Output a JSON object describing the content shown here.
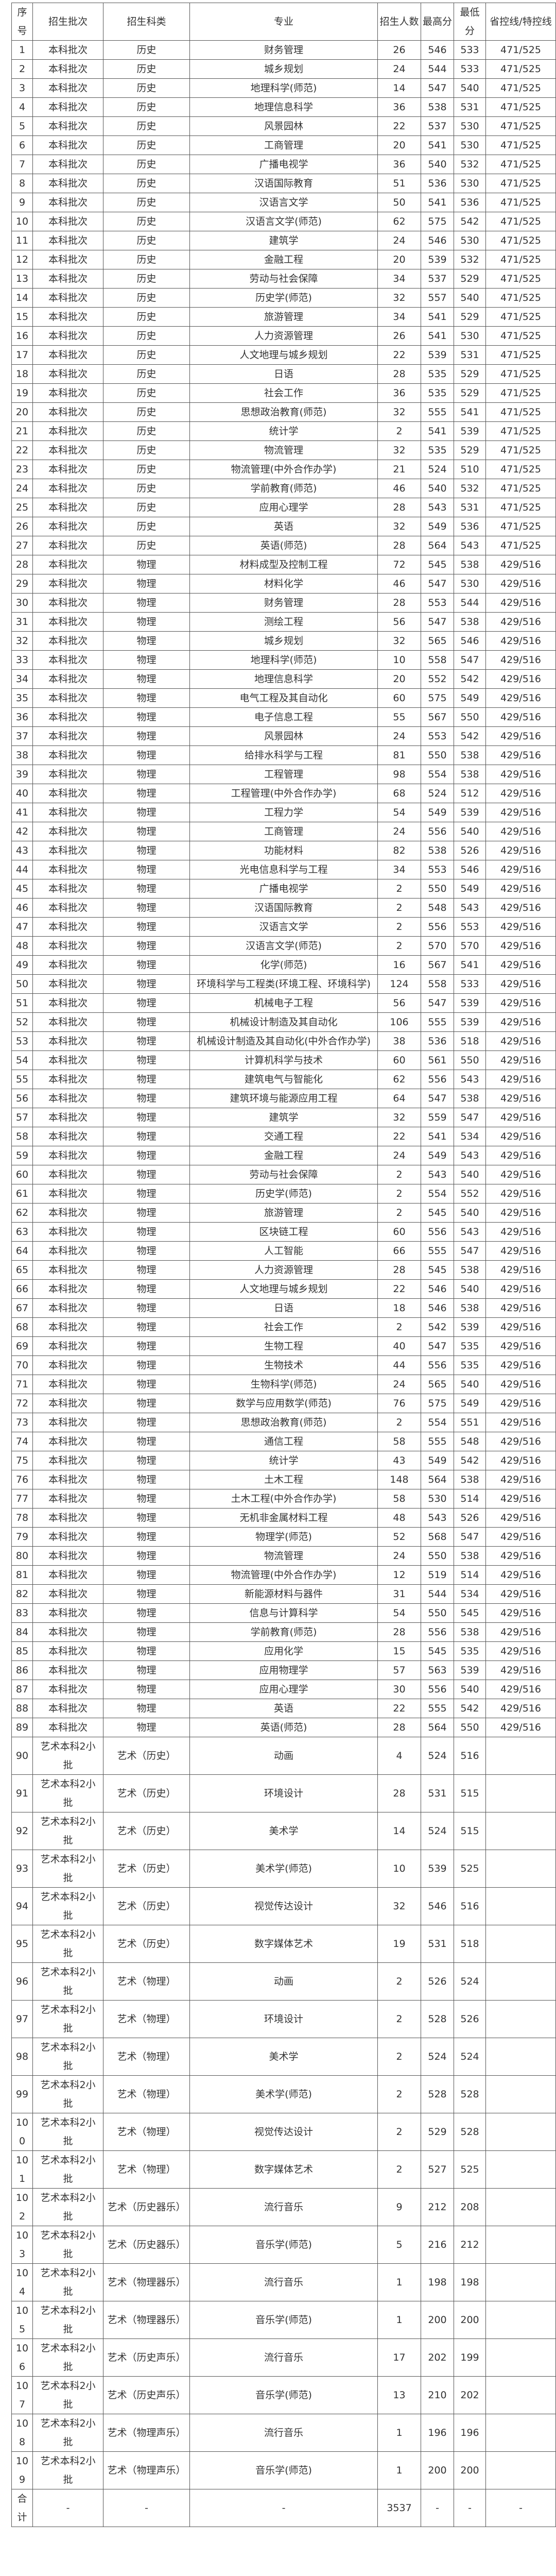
{
  "table": {
    "headers": [
      "序号",
      "招生批次",
      "招生科类",
      "专业",
      "招生人数",
      "最高分",
      "最低分",
      "省控线/特控线"
    ],
    "rows": [
      [
        "1",
        "本科批次",
        "历史",
        "财务管理",
        "26",
        "546",
        "533",
        "471/525"
      ],
      [
        "2",
        "本科批次",
        "历史",
        "城乡规划",
        "24",
        "544",
        "533",
        "471/525"
      ],
      [
        "3",
        "本科批次",
        "历史",
        "地理科学(师范)",
        "14",
        "547",
        "540",
        "471/525"
      ],
      [
        "4",
        "本科批次",
        "历史",
        "地理信息科学",
        "36",
        "538",
        "531",
        "471/525"
      ],
      [
        "5",
        "本科批次",
        "历史",
        "风景园林",
        "22",
        "537",
        "530",
        "471/525"
      ],
      [
        "6",
        "本科批次",
        "历史",
        "工商管理",
        "20",
        "541",
        "530",
        "471/525"
      ],
      [
        "7",
        "本科批次",
        "历史",
        "广播电视学",
        "36",
        "540",
        "532",
        "471/525"
      ],
      [
        "8",
        "本科批次",
        "历史",
        "汉语国际教育",
        "51",
        "536",
        "530",
        "471/525"
      ],
      [
        "9",
        "本科批次",
        "历史",
        "汉语言文学",
        "50",
        "541",
        "536",
        "471/525"
      ],
      [
        "10",
        "本科批次",
        "历史",
        "汉语言文学(师范)",
        "62",
        "575",
        "542",
        "471/525"
      ],
      [
        "11",
        "本科批次",
        "历史",
        "建筑学",
        "24",
        "546",
        "530",
        "471/525"
      ],
      [
        "12",
        "本科批次",
        "历史",
        "金融工程",
        "20",
        "539",
        "532",
        "471/525"
      ],
      [
        "13",
        "本科批次",
        "历史",
        "劳动与社会保障",
        "34",
        "537",
        "529",
        "471/525"
      ],
      [
        "14",
        "本科批次",
        "历史",
        "历史学(师范)",
        "32",
        "557",
        "540",
        "471/525"
      ],
      [
        "15",
        "本科批次",
        "历史",
        "旅游管理",
        "34",
        "541",
        "529",
        "471/525"
      ],
      [
        "16",
        "本科批次",
        "历史",
        "人力资源管理",
        "26",
        "541",
        "530",
        "471/525"
      ],
      [
        "17",
        "本科批次",
        "历史",
        "人文地理与城乡规划",
        "22",
        "539",
        "531",
        "471/525"
      ],
      [
        "18",
        "本科批次",
        "历史",
        "日语",
        "28",
        "535",
        "529",
        "471/525"
      ],
      [
        "19",
        "本科批次",
        "历史",
        "社会工作",
        "36",
        "535",
        "529",
        "471/525"
      ],
      [
        "20",
        "本科批次",
        "历史",
        "思想政治教育(师范)",
        "32",
        "555",
        "541",
        "471/525"
      ],
      [
        "21",
        "本科批次",
        "历史",
        "统计学",
        "2",
        "541",
        "539",
        "471/525"
      ],
      [
        "22",
        "本科批次",
        "历史",
        "物流管理",
        "32",
        "535",
        "529",
        "471/525"
      ],
      [
        "23",
        "本科批次",
        "历史",
        "物流管理(中外合作办学)",
        "21",
        "524",
        "510",
        "471/525"
      ],
      [
        "24",
        "本科批次",
        "历史",
        "学前教育(师范)",
        "46",
        "540",
        "532",
        "471/525"
      ],
      [
        "25",
        "本科批次",
        "历史",
        "应用心理学",
        "28",
        "543",
        "531",
        "471/525"
      ],
      [
        "26",
        "本科批次",
        "历史",
        "英语",
        "32",
        "549",
        "536",
        "471/525"
      ],
      [
        "27",
        "本科批次",
        "历史",
        "英语(师范)",
        "28",
        "564",
        "543",
        "471/525"
      ],
      [
        "28",
        "本科批次",
        "物理",
        "材料成型及控制工程",
        "72",
        "545",
        "538",
        "429/516"
      ],
      [
        "29",
        "本科批次",
        "物理",
        "材料化学",
        "46",
        "547",
        "530",
        "429/516"
      ],
      [
        "30",
        "本科批次",
        "物理",
        "财务管理",
        "28",
        "553",
        "544",
        "429/516"
      ],
      [
        "31",
        "本科批次",
        "物理",
        "测绘工程",
        "56",
        "547",
        "538",
        "429/516"
      ],
      [
        "32",
        "本科批次",
        "物理",
        "城乡规划",
        "32",
        "565",
        "546",
        "429/516"
      ],
      [
        "33",
        "本科批次",
        "物理",
        "地理科学(师范)",
        "10",
        "558",
        "547",
        "429/516"
      ],
      [
        "34",
        "本科批次",
        "物理",
        "地理信息科学",
        "20",
        "552",
        "542",
        "429/516"
      ],
      [
        "35",
        "本科批次",
        "物理",
        "电气工程及其自动化",
        "60",
        "575",
        "549",
        "429/516"
      ],
      [
        "36",
        "本科批次",
        "物理",
        "电子信息工程",
        "55",
        "567",
        "550",
        "429/516"
      ],
      [
        "37",
        "本科批次",
        "物理",
        "风景园林",
        "24",
        "553",
        "542",
        "429/516"
      ],
      [
        "38",
        "本科批次",
        "物理",
        "给排水科学与工程",
        "81",
        "550",
        "538",
        "429/516"
      ],
      [
        "39",
        "本科批次",
        "物理",
        "工程管理",
        "98",
        "554",
        "538",
        "429/516"
      ],
      [
        "40",
        "本科批次",
        "物理",
        "工程管理(中外合作办学)",
        "68",
        "524",
        "512",
        "429/516"
      ],
      [
        "41",
        "本科批次",
        "物理",
        "工程力学",
        "54",
        "549",
        "539",
        "429/516"
      ],
      [
        "42",
        "本科批次",
        "物理",
        "工商管理",
        "24",
        "556",
        "540",
        "429/516"
      ],
      [
        "43",
        "本科批次",
        "物理",
        "功能材料",
        "82",
        "538",
        "526",
        "429/516"
      ],
      [
        "44",
        "本科批次",
        "物理",
        "光电信息科学与工程",
        "34",
        "553",
        "546",
        "429/516"
      ],
      [
        "45",
        "本科批次",
        "物理",
        "广播电视学",
        "2",
        "550",
        "549",
        "429/516"
      ],
      [
        "46",
        "本科批次",
        "物理",
        "汉语国际教育",
        "2",
        "548",
        "543",
        "429/516"
      ],
      [
        "47",
        "本科批次",
        "物理",
        "汉语言文学",
        "2",
        "556",
        "553",
        "429/516"
      ],
      [
        "48",
        "本科批次",
        "物理",
        "汉语言文学(师范)",
        "2",
        "570",
        "570",
        "429/516"
      ],
      [
        "49",
        "本科批次",
        "物理",
        "化学(师范)",
        "16",
        "567",
        "541",
        "429/516"
      ],
      [
        "50",
        "本科批次",
        "物理",
        "环境科学与工程类(环境工程、环境科学)",
        "124",
        "558",
        "533",
        "429/516"
      ],
      [
        "51",
        "本科批次",
        "物理",
        "机械电子工程",
        "56",
        "547",
        "539",
        "429/516"
      ],
      [
        "52",
        "本科批次",
        "物理",
        "机械设计制造及其自动化",
        "106",
        "555",
        "539",
        "429/516"
      ],
      [
        "53",
        "本科批次",
        "物理",
        "机械设计制造及其自动化(中外合作办学)",
        "38",
        "536",
        "518",
        "429/516"
      ],
      [
        "54",
        "本科批次",
        "物理",
        "计算机科学与技术",
        "60",
        "561",
        "550",
        "429/516"
      ],
      [
        "55",
        "本科批次",
        "物理",
        "建筑电气与智能化",
        "62",
        "556",
        "543",
        "429/516"
      ],
      [
        "56",
        "本科批次",
        "物理",
        "建筑环境与能源应用工程",
        "64",
        "547",
        "538",
        "429/516"
      ],
      [
        "57",
        "本科批次",
        "物理",
        "建筑学",
        "32",
        "559",
        "547",
        "429/516"
      ],
      [
        "58",
        "本科批次",
        "物理",
        "交通工程",
        "22",
        "541",
        "534",
        "429/516"
      ],
      [
        "59",
        "本科批次",
        "物理",
        "金融工程",
        "24",
        "549",
        "543",
        "429/516"
      ],
      [
        "60",
        "本科批次",
        "物理",
        "劳动与社会保障",
        "2",
        "543",
        "540",
        "429/516"
      ],
      [
        "61",
        "本科批次",
        "物理",
        "历史学(师范)",
        "2",
        "554",
        "552",
        "429/516"
      ],
      [
        "62",
        "本科批次",
        "物理",
        "旅游管理",
        "2",
        "545",
        "540",
        "429/516"
      ],
      [
        "63",
        "本科批次",
        "物理",
        "区块链工程",
        "60",
        "556",
        "543",
        "429/516"
      ],
      [
        "64",
        "本科批次",
        "物理",
        "人工智能",
        "66",
        "555",
        "547",
        "429/516"
      ],
      [
        "65",
        "本科批次",
        "物理",
        "人力资源管理",
        "28",
        "545",
        "538",
        "429/516"
      ],
      [
        "66",
        "本科批次",
        "物理",
        "人文地理与城乡规划",
        "22",
        "546",
        "540",
        "429/516"
      ],
      [
        "67",
        "本科批次",
        "物理",
        "日语",
        "18",
        "546",
        "538",
        "429/516"
      ],
      [
        "68",
        "本科批次",
        "物理",
        "社会工作",
        "2",
        "542",
        "539",
        "429/516"
      ],
      [
        "69",
        "本科批次",
        "物理",
        "生物工程",
        "40",
        "547",
        "535",
        "429/516"
      ],
      [
        "70",
        "本科批次",
        "物理",
        "生物技术",
        "44",
        "556",
        "535",
        "429/516"
      ],
      [
        "71",
        "本科批次",
        "物理",
        "生物科学(师范)",
        "24",
        "565",
        "540",
        "429/516"
      ],
      [
        "72",
        "本科批次",
        "物理",
        "数学与应用数学(师范)",
        "76",
        "575",
        "549",
        "429/516"
      ],
      [
        "73",
        "本科批次",
        "物理",
        "思想政治教育(师范)",
        "2",
        "554",
        "551",
        "429/516"
      ],
      [
        "74",
        "本科批次",
        "物理",
        "通信工程",
        "58",
        "555",
        "548",
        "429/516"
      ],
      [
        "75",
        "本科批次",
        "物理",
        "统计学",
        "43",
        "549",
        "542",
        "429/516"
      ],
      [
        "76",
        "本科批次",
        "物理",
        "土木工程",
        "148",
        "564",
        "538",
        "429/516"
      ],
      [
        "77",
        "本科批次",
        "物理",
        "土木工程(中外合作办学)",
        "58",
        "530",
        "514",
        "429/516"
      ],
      [
        "78",
        "本科批次",
        "物理",
        "无机非金属材料工程",
        "48",
        "543",
        "526",
        "429/516"
      ],
      [
        "79",
        "本科批次",
        "物理",
        "物理学(师范)",
        "52",
        "568",
        "547",
        "429/516"
      ],
      [
        "80",
        "本科批次",
        "物理",
        "物流管理",
        "24",
        "550",
        "538",
        "429/516"
      ],
      [
        "81",
        "本科批次",
        "物理",
        "物流管理(中外合作办学)",
        "12",
        "519",
        "514",
        "429/516"
      ],
      [
        "82",
        "本科批次",
        "物理",
        "新能源材料与器件",
        "31",
        "544",
        "534",
        "429/516"
      ],
      [
        "83",
        "本科批次",
        "物理",
        "信息与计算科学",
        "54",
        "550",
        "545",
        "429/516"
      ],
      [
        "84",
        "本科批次",
        "物理",
        "学前教育(师范)",
        "28",
        "556",
        "538",
        "429/516"
      ],
      [
        "85",
        "本科批次",
        "物理",
        "应用化学",
        "15",
        "545",
        "535",
        "429/516"
      ],
      [
        "86",
        "本科批次",
        "物理",
        "应用物理学",
        "57",
        "563",
        "539",
        "429/516"
      ],
      [
        "87",
        "本科批次",
        "物理",
        "应用心理学",
        "30",
        "556",
        "540",
        "429/516"
      ],
      [
        "88",
        "本科批次",
        "物理",
        "英语",
        "22",
        "555",
        "542",
        "429/516"
      ],
      [
        "89",
        "本科批次",
        "物理",
        "英语(师范)",
        "28",
        "564",
        "550",
        "429/516"
      ],
      [
        "90",
        "艺术本科2小批",
        "艺术（历史）",
        "动画",
        "4",
        "524",
        "516",
        ""
      ],
      [
        "91",
        "艺术本科2小批",
        "艺术（历史）",
        "环境设计",
        "28",
        "531",
        "515",
        ""
      ],
      [
        "92",
        "艺术本科2小批",
        "艺术（历史）",
        "美术学",
        "14",
        "524",
        "515",
        ""
      ],
      [
        "93",
        "艺术本科2小批",
        "艺术（历史）",
        "美术学(师范)",
        "10",
        "539",
        "525",
        ""
      ],
      [
        "94",
        "艺术本科2小批",
        "艺术（历史）",
        "视觉传达设计",
        "32",
        "546",
        "516",
        ""
      ],
      [
        "95",
        "艺术本科2小批",
        "艺术（历史）",
        "数字媒体艺术",
        "19",
        "531",
        "518",
        ""
      ],
      [
        "96",
        "艺术本科2小批",
        "艺术（物理）",
        "动画",
        "2",
        "526",
        "524",
        ""
      ],
      [
        "97",
        "艺术本科2小批",
        "艺术（物理）",
        "环境设计",
        "2",
        "528",
        "526",
        ""
      ],
      [
        "98",
        "艺术本科2小批",
        "艺术（物理）",
        "美术学",
        "2",
        "524",
        "524",
        ""
      ],
      [
        "99",
        "艺术本科2小批",
        "艺术（物理）",
        "美术学(师范)",
        "2",
        "528",
        "528",
        ""
      ],
      [
        "100",
        "艺术本科2小批",
        "艺术（物理）",
        "视觉传达设计",
        "2",
        "529",
        "528",
        ""
      ],
      [
        "101",
        "艺术本科2小批",
        "艺术（物理）",
        "数字媒体艺术",
        "2",
        "527",
        "525",
        ""
      ],
      [
        "102",
        "艺术本科2小批",
        "艺术（历史器乐）",
        "流行音乐",
        "9",
        "212",
        "208",
        ""
      ],
      [
        "103",
        "艺术本科2小批",
        "艺术（历史器乐）",
        "音乐学(师范)",
        "5",
        "216",
        "212",
        ""
      ],
      [
        "104",
        "艺术本科2小批",
        "艺术（物理器乐）",
        "流行音乐",
        "1",
        "198",
        "198",
        ""
      ],
      [
        "105",
        "艺术本科2小批",
        "艺术（物理器乐）",
        "音乐学(师范)",
        "1",
        "200",
        "200",
        ""
      ],
      [
        "106",
        "艺术本科2小批",
        "艺术（历史声乐）",
        "流行音乐",
        "17",
        "202",
        "199",
        ""
      ],
      [
        "107",
        "艺术本科2小批",
        "艺术（历史声乐）",
        "音乐学(师范)",
        "13",
        "210",
        "202",
        ""
      ],
      [
        "108",
        "艺术本科2小批",
        "艺术（物理声乐）",
        "流行音乐",
        "1",
        "196",
        "196",
        ""
      ],
      [
        "109",
        "艺术本科2小批",
        "艺术（物理声乐）",
        "音乐学(师范)",
        "1",
        "200",
        "200",
        ""
      ]
    ],
    "total": [
      "合计",
      "-",
      "-",
      "-",
      "3537",
      "-",
      "-",
      "-"
    ]
  }
}
